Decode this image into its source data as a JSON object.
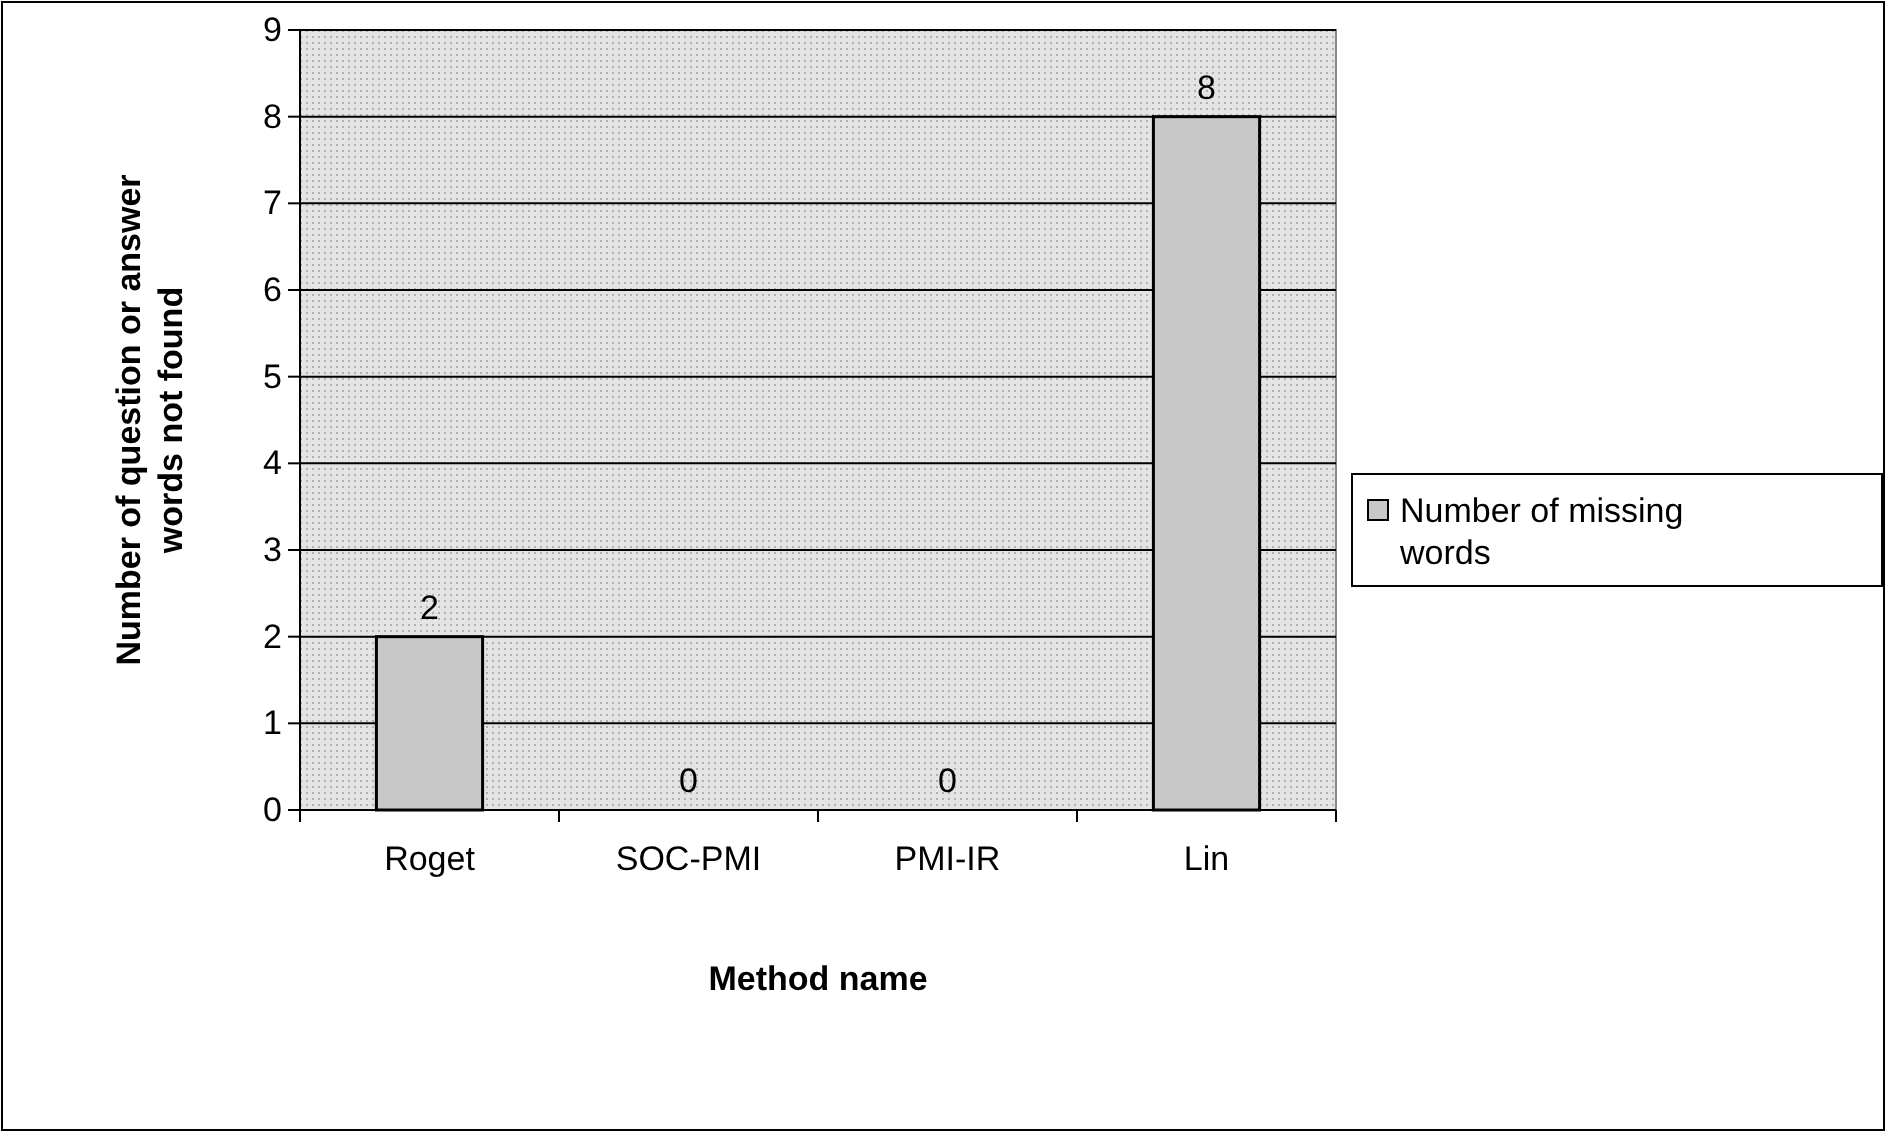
{
  "chart_data": {
    "type": "bar",
    "xlabel": "Method name",
    "ylabel": "Number of question or answer words not found",
    "categories": [
      "Roget",
      "SOC-PMI",
      "PMI-IR",
      "Lin"
    ],
    "series": [
      {
        "name": "Number of missing words",
        "color": "#c8c8c8",
        "values": [
          2,
          0,
          0,
          8
        ]
      }
    ],
    "ylim": [
      0,
      9
    ],
    "yticks": [
      0,
      1,
      2,
      3,
      4,
      5,
      6,
      7,
      8,
      9
    ],
    "grid": "y",
    "legend": "right",
    "data_labels": true
  }
}
